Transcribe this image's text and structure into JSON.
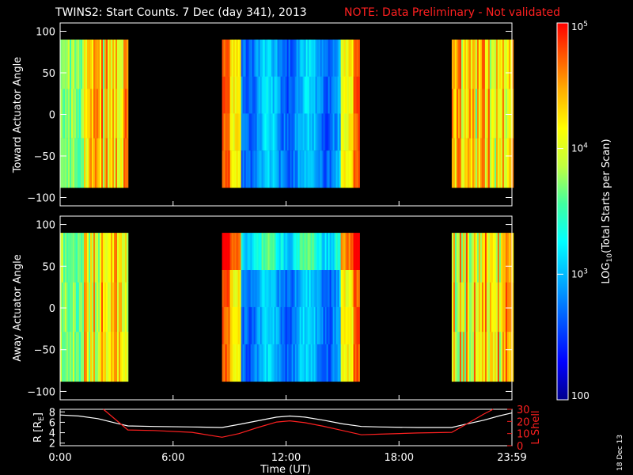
{
  "header": {
    "title": "TWINS2: Start Counts.  7 Dec (day 341), 2013",
    "note": "NOTE: Data Preliminary - Not validated"
  },
  "side_stamp": "18 Dec 13",
  "colors": {
    "background": "#000000",
    "axes": "#ffffff",
    "note": "#ff2020",
    "r_line": "#ffffff",
    "l_shell_line": "#ff2020"
  },
  "chart_data": [
    {
      "type": "heatmap",
      "name": "toward",
      "ylabel": "Toward Actuator Angle",
      "ylim": [
        -110,
        110
      ],
      "yticks": [
        100,
        50,
        0,
        -50,
        -100
      ],
      "xlim": [
        0,
        24
      ],
      "data_y_range": [
        -88,
        90
      ],
      "data_segments_hours": [
        [
          0.0,
          3.6
        ],
        [
          8.6,
          15.9
        ],
        [
          20.8,
          24.0
        ]
      ],
      "colorscale": "log10 counts, 100 to 1e5",
      "description_levels": "blue ~1e3 in midday segment, red/orange ~1e5 at segment edges"
    },
    {
      "type": "heatmap",
      "name": "away",
      "ylabel": "Away Actuator Angle",
      "ylim": [
        -110,
        110
      ],
      "yticks": [
        100,
        50,
        0,
        -50,
        -100
      ],
      "xlim": [
        0,
        24
      ],
      "data_y_range": [
        -88,
        90
      ],
      "data_segments_hours": [
        [
          0.0,
          3.6
        ],
        [
          8.6,
          15.9
        ],
        [
          20.8,
          24.0
        ]
      ],
      "colorscale": "log10 counts, 100 to 1e5"
    },
    {
      "type": "line",
      "name": "orbit",
      "xlabel": "Time (UT)",
      "xlim": [
        0,
        24
      ],
      "xticks": [
        "0:00",
        "6:00",
        "12:00",
        "18:00",
        "23:59"
      ],
      "xtick_values": [
        0,
        6,
        12,
        18,
        24
      ],
      "left_axis": {
        "label": "R [R",
        "label_sub": "E",
        "label_end": "]",
        "ylim": [
          1.5,
          8.5
        ],
        "ticks": [
          2,
          4,
          6,
          8
        ]
      },
      "right_axis": {
        "label": "L Shell",
        "ylim": [
          0,
          30
        ],
        "ticks": [
          0,
          10,
          20,
          30
        ]
      },
      "series": [
        {
          "name": "R [RE]",
          "axis": "left",
          "x": [
            0,
            1,
            2,
            3,
            3.6,
            5,
            7,
            8.6,
            9.5,
            10.5,
            11.5,
            12.2,
            13,
            14,
            15,
            16,
            17,
            19,
            20.8,
            21.5,
            22.5,
            23.3,
            24
          ],
          "y": [
            7.4,
            7.2,
            6.7,
            5.8,
            5.3,
            5.2,
            5.1,
            5.0,
            5.6,
            6.3,
            7.0,
            7.2,
            7.0,
            6.4,
            5.7,
            5.2,
            5.1,
            5.0,
            5.0,
            5.6,
            6.4,
            7.2,
            7.8
          ]
        },
        {
          "name": "L Shell",
          "axis": "right",
          "x": [
            2.3,
            3.6,
            5,
            7,
            8.6,
            9.5,
            10.5,
            11.5,
            12.2,
            13,
            14,
            15,
            16,
            17,
            19,
            20.8,
            21.5,
            22.5,
            23.0
          ],
          "y": [
            30,
            13,
            12.5,
            11,
            7,
            10,
            15,
            19.5,
            20.5,
            19,
            16,
            12.5,
            9,
            9.5,
            10.5,
            11,
            17,
            26,
            30
          ]
        }
      ]
    }
  ],
  "colorbar": {
    "label": "LOG",
    "label_sub": "10",
    "label_rest": "(Total Starts per Scan)",
    "ticks": [
      {
        "base": "10",
        "exp": "5",
        "value": 100000
      },
      {
        "base": "10",
        "exp": "4",
        "value": 10000
      },
      {
        "base": "10",
        "exp": "3",
        "value": 1000
      },
      {
        "base": "100",
        "exp": "",
        "value": 100
      }
    ],
    "range": [
      100,
      100000
    ],
    "stops": [
      "#00008c",
      "#0000ff",
      "#0060ff",
      "#00b0ff",
      "#00ffff",
      "#40ffa0",
      "#c0ff40",
      "#ffff00",
      "#ffb000",
      "#ff5000",
      "#ff0000"
    ]
  }
}
